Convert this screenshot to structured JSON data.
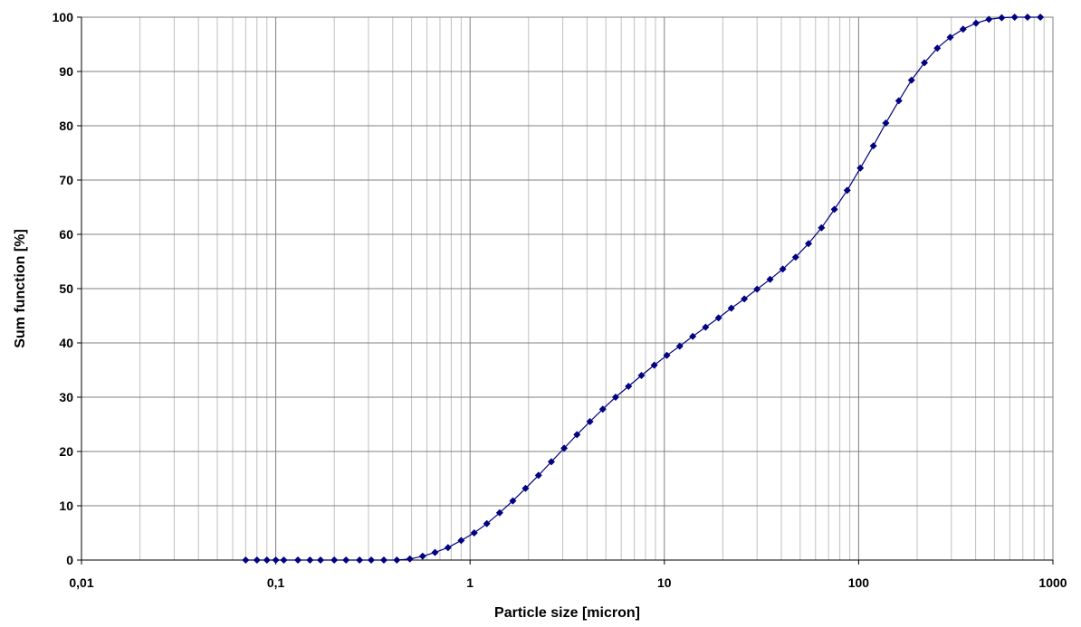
{
  "chart_data": {
    "type": "line",
    "title": "",
    "xlabel": "Particle size [micron]",
    "ylabel": "Sum function [%]",
    "x_scale": "log",
    "xlim": [
      0.01,
      1000
    ],
    "ylim": [
      0,
      100
    ],
    "x_ticks": [
      0.01,
      0.1,
      1,
      10,
      100,
      1000
    ],
    "x_tick_labels": [
      "0,01",
      "0,1",
      "1",
      "10",
      "100",
      "1000"
    ],
    "y_ticks": [
      0,
      10,
      20,
      30,
      40,
      50,
      60,
      70,
      80,
      90,
      100
    ],
    "y_tick_labels": [
      "0",
      "10",
      "20",
      "30",
      "40",
      "50",
      "60",
      "70",
      "80",
      "90",
      "100"
    ],
    "grid": {
      "major_y": true,
      "major_x": true,
      "minor_x": true
    },
    "legend": "none",
    "colors": {
      "series": "#000080",
      "grid": "#808080",
      "minor_grid": "#c0c0c0"
    },
    "series": [
      {
        "x": [
          0.07,
          0.08,
          0.09,
          0.1,
          0.11,
          0.13,
          0.15,
          0.17,
          0.2,
          0.23,
          0.27,
          0.31,
          0.36,
          0.42,
          0.49,
          0.57,
          0.66,
          0.77,
          0.9,
          1.05,
          1.22,
          1.42,
          1.66,
          1.93,
          2.25,
          2.62,
          3.05,
          3.55,
          4.14,
          4.82,
          5.61,
          6.54,
          7.62,
          8.87,
          10.3,
          12.0,
          14.0,
          16.3,
          19.0,
          22.1,
          25.8,
          30.0,
          35.0,
          40.7,
          47.4,
          55.2,
          64.4,
          75.0,
          87.3,
          102,
          119,
          138,
          161,
          187,
          218,
          254,
          296,
          345,
          402,
          468,
          545,
          635,
          740,
          862
        ],
        "y": [
          0,
          0,
          0,
          0,
          0,
          0,
          0,
          0,
          0,
          0,
          0,
          0,
          0,
          0,
          0.2,
          0.7,
          1.4,
          2.3,
          3.6,
          5.0,
          6.7,
          8.7,
          10.9,
          13.2,
          15.6,
          18.1,
          20.6,
          23.1,
          25.5,
          27.8,
          30.0,
          32.0,
          34.0,
          35.9,
          37.7,
          39.4,
          41.2,
          42.9,
          44.6,
          46.4,
          48.1,
          49.9,
          51.7,
          53.6,
          55.8,
          58.3,
          61.2,
          64.6,
          68.1,
          72.2,
          76.3,
          80.5,
          84.6,
          88.4,
          91.6,
          94.3,
          96.3,
          97.8,
          98.9,
          99.6,
          99.9,
          100,
          100,
          100
        ]
      }
    ]
  }
}
